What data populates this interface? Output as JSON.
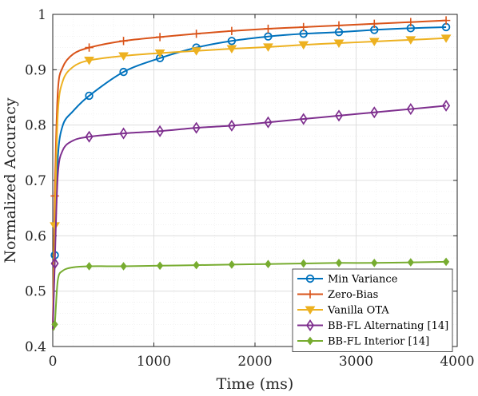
{
  "chart_data": {
    "type": "line",
    "title": "",
    "xlabel": "Time (ms)",
    "ylabel": "Normalized Accuracy",
    "xlim": [
      0,
      4000
    ],
    "ylim": [
      0.4,
      1.0
    ],
    "xticks": [
      "0",
      "1000",
      "2000",
      "3000",
      "4000"
    ],
    "yticks": [
      "0.4",
      "0.5",
      "0.6",
      "0.7",
      "0.8",
      "0.9",
      "1"
    ],
    "grid": true,
    "minor_grid": true,
    "legend_position": "bottom-right",
    "series": [
      {
        "name": "Min Variance",
        "color": "#0072BD",
        "marker": "circle",
        "x": [
          0,
          20,
          50,
          100,
          200,
          360,
          700,
          1060,
          1420,
          1770,
          2130,
          2480,
          2830,
          3180,
          3540,
          3890
        ],
        "y": [
          0.43,
          0.565,
          0.74,
          0.8,
          0.825,
          0.853,
          0.896,
          0.921,
          0.94,
          0.952,
          0.96,
          0.965,
          0.968,
          0.972,
          0.975,
          0.977
        ],
        "markers_x": [
          20,
          360,
          700,
          1060,
          1420,
          1770,
          2130,
          2480,
          2830,
          3180,
          3540,
          3890
        ],
        "markers_y": [
          0.565,
          0.853,
          0.896,
          0.921,
          0.94,
          0.952,
          0.96,
          0.965,
          0.968,
          0.972,
          0.975,
          0.977
        ]
      },
      {
        "name": "Zero-Bias",
        "color": "#D95319",
        "marker": "plus",
        "x": [
          0,
          20,
          50,
          100,
          200,
          360,
          700,
          1060,
          1420,
          1770,
          2130,
          2480,
          2830,
          3180,
          3540,
          3890
        ],
        "y": [
          0.43,
          0.672,
          0.86,
          0.905,
          0.928,
          0.94,
          0.952,
          0.959,
          0.965,
          0.97,
          0.974,
          0.977,
          0.98,
          0.983,
          0.986,
          0.989
        ],
        "markers_x": [
          20,
          360,
          700,
          1060,
          1420,
          1770,
          2130,
          2480,
          2830,
          3180,
          3540,
          3890
        ],
        "markers_y": [
          0.672,
          0.94,
          0.952,
          0.959,
          0.965,
          0.97,
          0.974,
          0.977,
          0.98,
          0.983,
          0.986,
          0.989
        ]
      },
      {
        "name": "Vanilla OTA",
        "color": "#EDB120",
        "marker": "triangle-down",
        "x": [
          0,
          20,
          50,
          100,
          200,
          360,
          700,
          1060,
          1420,
          1770,
          2130,
          2480,
          2830,
          3180,
          3540,
          3890
        ],
        "y": [
          0.43,
          0.618,
          0.82,
          0.88,
          0.905,
          0.917,
          0.925,
          0.93,
          0.934,
          0.938,
          0.941,
          0.945,
          0.948,
          0.951,
          0.954,
          0.957
        ],
        "markers_x": [
          20,
          360,
          700,
          1060,
          1420,
          1770,
          2130,
          2480,
          2830,
          3180,
          3540,
          3890
        ],
        "markers_y": [
          0.618,
          0.917,
          0.925,
          0.93,
          0.934,
          0.938,
          0.941,
          0.945,
          0.948,
          0.951,
          0.954,
          0.957
        ]
      },
      {
        "name": "BB-FL Alternating [14]",
        "color": "#7E2F8E",
        "marker": "diamond",
        "x": [
          0,
          20,
          50,
          100,
          200,
          360,
          700,
          1060,
          1420,
          1770,
          2130,
          2480,
          2830,
          3180,
          3540,
          3890
        ],
        "y": [
          0.43,
          0.55,
          0.71,
          0.755,
          0.772,
          0.779,
          0.785,
          0.789,
          0.795,
          0.799,
          0.805,
          0.811,
          0.817,
          0.823,
          0.829,
          0.835
        ],
        "markers_x": [
          20,
          360,
          700,
          1060,
          1420,
          1770,
          2130,
          2480,
          2830,
          3180,
          3540,
          3890
        ],
        "markers_y": [
          0.55,
          0.779,
          0.785,
          0.789,
          0.795,
          0.799,
          0.805,
          0.811,
          0.817,
          0.823,
          0.829,
          0.835
        ]
      },
      {
        "name": "BB-FL Interior [14]",
        "color": "#77AC30",
        "marker": "diamond-filled",
        "x": [
          0,
          20,
          50,
          100,
          200,
          360,
          700,
          1060,
          1420,
          1770,
          2130,
          2480,
          2830,
          3180,
          3540,
          3890
        ],
        "y": [
          0.43,
          0.44,
          0.52,
          0.537,
          0.543,
          0.545,
          0.545,
          0.546,
          0.547,
          0.548,
          0.549,
          0.55,
          0.551,
          0.551,
          0.552,
          0.553
        ],
        "markers_x": [
          20,
          360,
          700,
          1060,
          1420,
          1770,
          2130,
          2480,
          2830,
          3180,
          3540,
          3890
        ],
        "markers_y": [
          0.44,
          0.545,
          0.545,
          0.546,
          0.547,
          0.548,
          0.549,
          0.55,
          0.551,
          0.551,
          0.552,
          0.553
        ]
      }
    ]
  }
}
